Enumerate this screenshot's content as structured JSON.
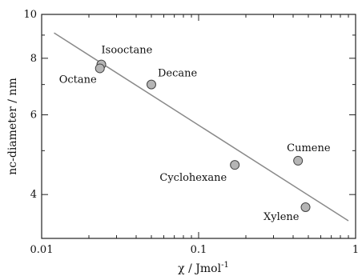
{
  "chart_data": {
    "type": "scatter",
    "xlabel": "χ / Jmol",
    "xlabel_sup": "-1",
    "ylabel": "nc-diameter / nm",
    "xscale": "log",
    "yscale": "log",
    "xlim": [
      0.01,
      1
    ],
    "ylim": [
      3.2,
      10
    ],
    "x_ticks": [
      0.01,
      0.1,
      1
    ],
    "x_tick_labels": [
      "0.01",
      "0.1",
      "1"
    ],
    "y_ticks": [
      4,
      6,
      8,
      10
    ],
    "y_tick_labels": [
      "4",
      "6",
      "8",
      "10"
    ],
    "grid": false,
    "points": [
      {
        "label": "Isooctane",
        "x": 0.024,
        "y": 7.75
      },
      {
        "label": "Octane",
        "x": 0.0235,
        "y": 7.6
      },
      {
        "label": "Decane",
        "x": 0.05,
        "y": 7.0
      },
      {
        "label": "Cyclohexane",
        "x": 0.17,
        "y": 4.65
      },
      {
        "label": "Cumene",
        "x": 0.43,
        "y": 4.75
      },
      {
        "label": "Xylene",
        "x": 0.48,
        "y": 3.75
      }
    ],
    "fit_line": {
      "x": [
        0.012,
        0.9
      ],
      "y": [
        9.1,
        3.5
      ]
    },
    "colors": {
      "marker_fill": "#b5b5b5",
      "marker_stroke": "#444444",
      "line": "#8a8a8a",
      "axes": "#222222"
    }
  }
}
